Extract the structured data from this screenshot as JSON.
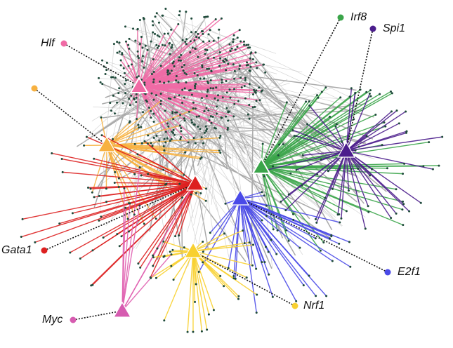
{
  "nodes": [
    {
      "label": "Hlf"
    },
    {
      "label": "Irf8"
    },
    {
      "label": "Spi1"
    },
    {
      "label": "Gata1"
    },
    {
      "label": "E2f1"
    },
    {
      "label": "Nrf1"
    },
    {
      "label": "Myc"
    }
  ]
}
